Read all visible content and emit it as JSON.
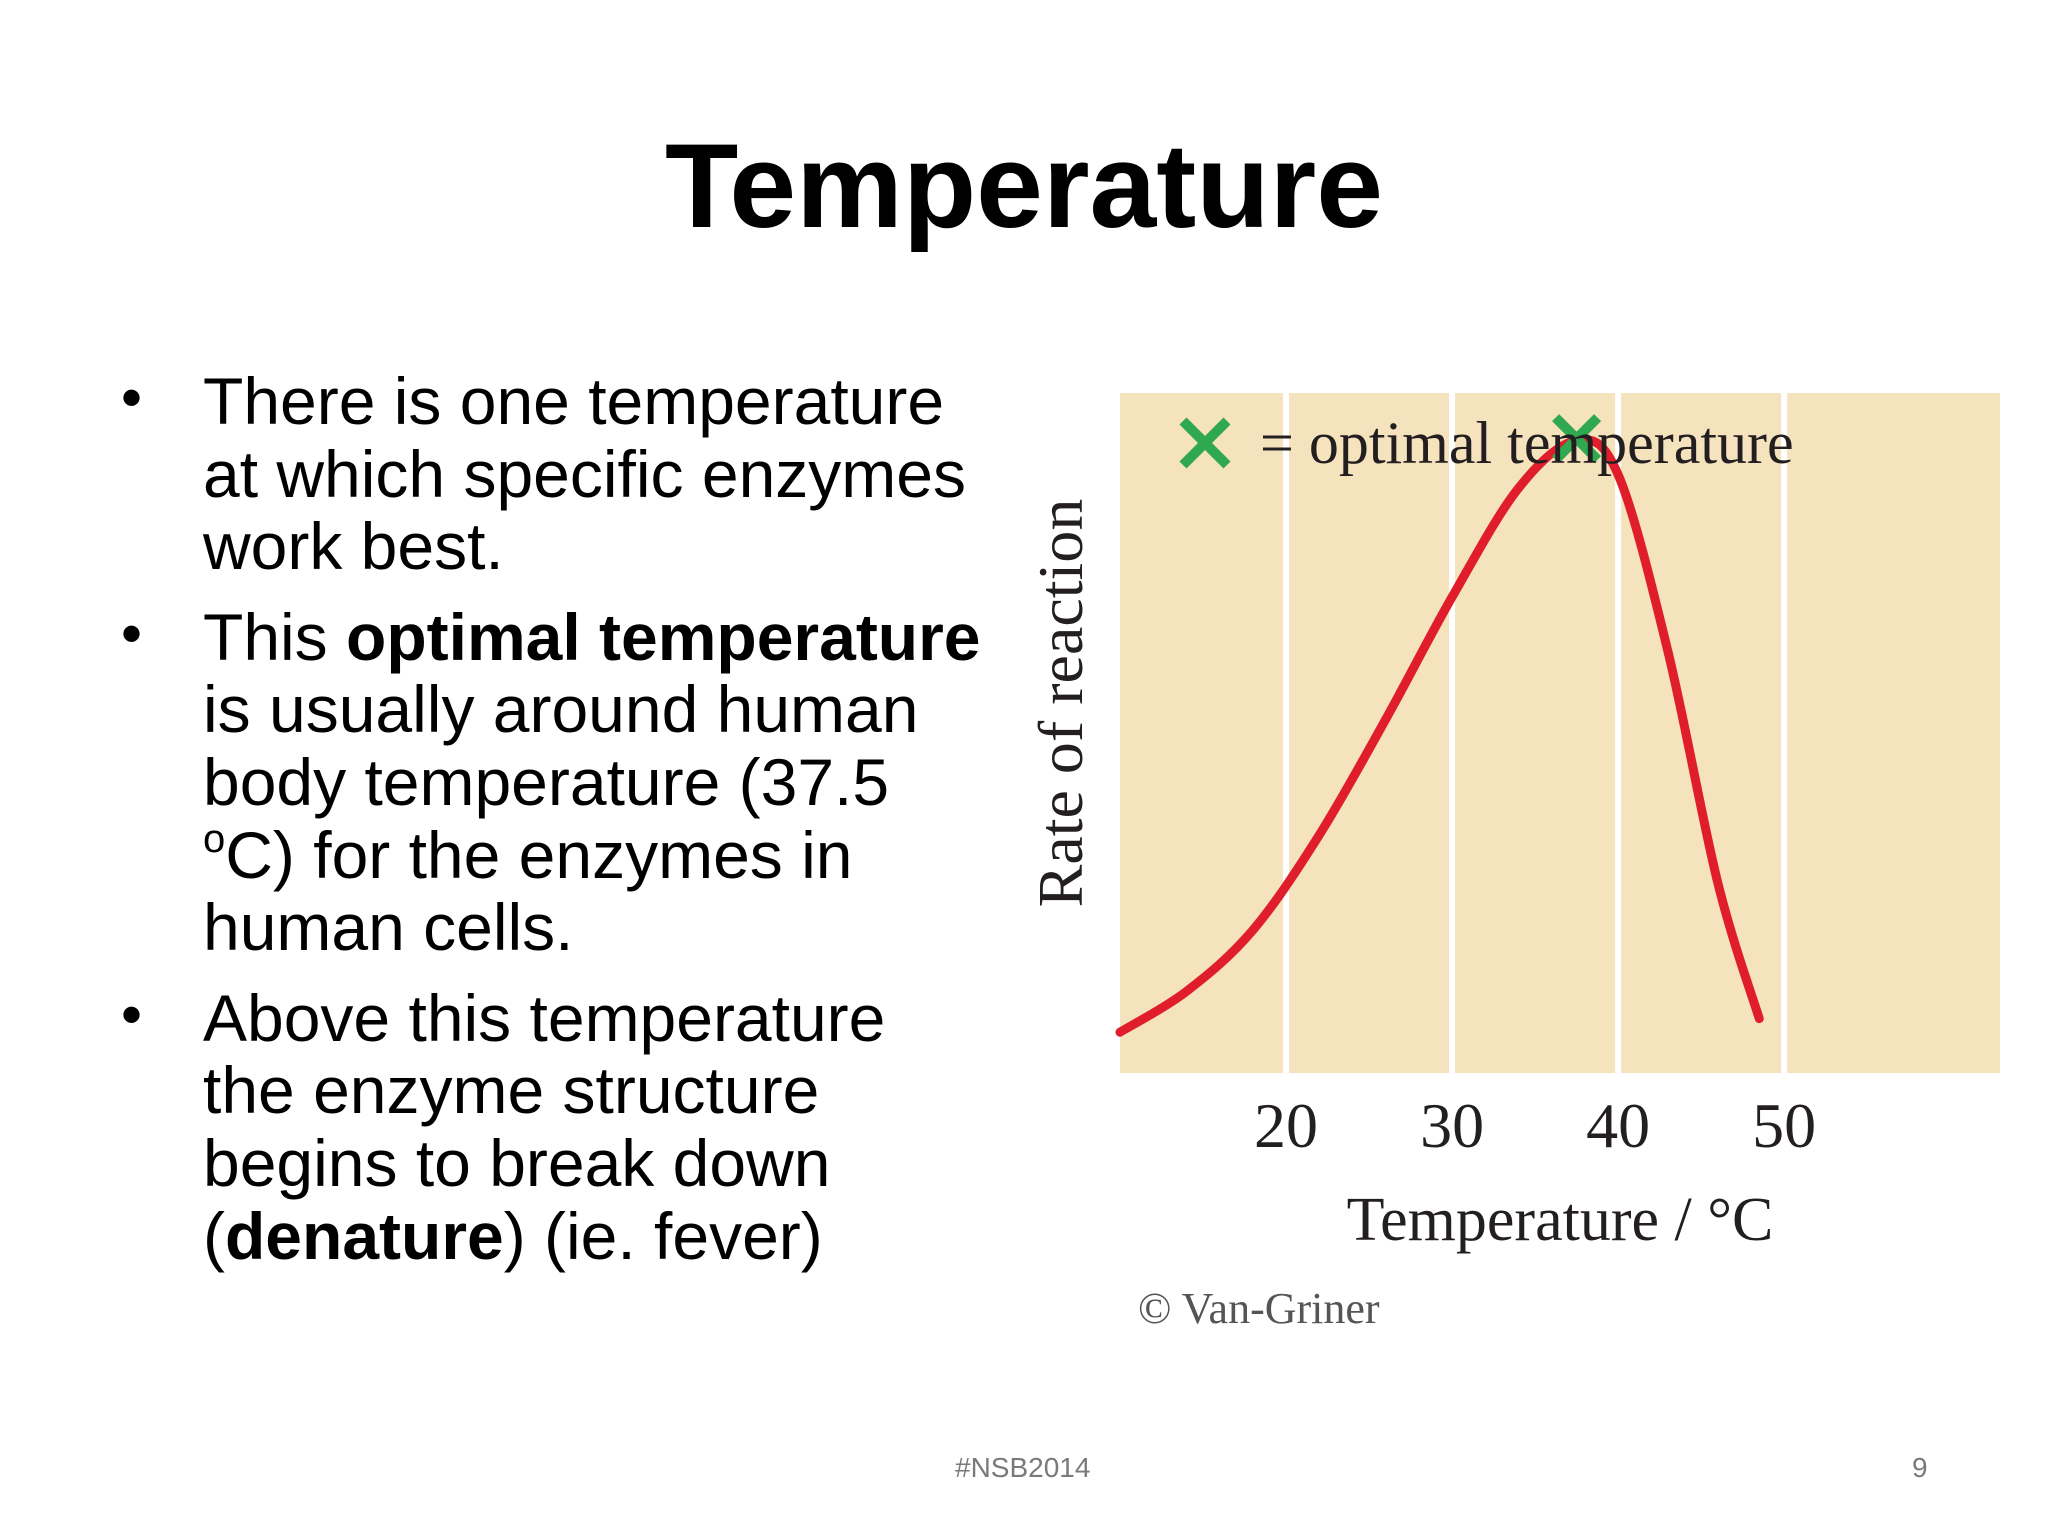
{
  "slide": {
    "title": "Temperature",
    "bullets": [
      {
        "text_before": "There is one temperature at which specific enzymes work best.",
        "bold": "",
        "text_after": ""
      },
      {
        "text_before": "This ",
        "bold": "optimal temperature",
        "text_after": " is usually around human body temperature (37.5 ",
        "sup": "o",
        "text_end": "C) for the enzymes in human cells."
      },
      {
        "text_before": "Above this temperature the enzyme structure begins to break down (",
        "bold": "denature",
        "text_after": ") (ie. fever)"
      }
    ],
    "footer_tag": "#NSB2014",
    "page_number": "9"
  },
  "colors": {
    "plot_background": "#f5e3bd",
    "gridline": "#ffffff",
    "curve": "#e01e2b",
    "marker": "#2fa84f",
    "axis_text": "#231f20",
    "credit_text": "#555555"
  },
  "chart_data": {
    "type": "line",
    "title": "",
    "legend": {
      "symbol": "×",
      "label": "= optimal temperature",
      "position": "top"
    },
    "xlabel": "Temperature / °C",
    "ylabel": "Rate of reaction",
    "xlim": [
      10,
      63
    ],
    "ylim": [
      0,
      1
    ],
    "x_ticks": [
      20,
      30,
      40,
      50
    ],
    "grid": true,
    "y_ticks": [],
    "series": [
      {
        "values": [
          [
            10,
            0.06
          ],
          [
            14,
            0.12
          ],
          [
            18,
            0.21
          ],
          [
            22,
            0.35
          ],
          [
            26,
            0.52
          ],
          [
            30,
            0.7
          ],
          [
            34,
            0.86
          ],
          [
            37.5,
            0.93
          ],
          [
            40,
            0.88
          ],
          [
            43,
            0.62
          ],
          [
            46,
            0.28
          ],
          [
            48.5,
            0.08
          ]
        ]
      }
    ],
    "optimum": {
      "x": 37.5,
      "y": 0.93
    },
    "credit": "© Van-Griner"
  }
}
